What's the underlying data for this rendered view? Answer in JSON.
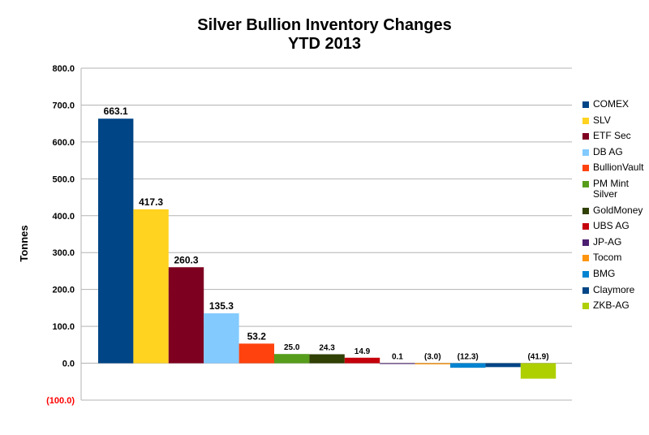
{
  "chart_data": {
    "type": "bar",
    "title": "Silver Bullion Inventory Changes",
    "subtitle": "YTD 2013",
    "xlabel": "",
    "ylabel": "Tonnes",
    "ylim": [
      -100,
      800
    ],
    "yticks": [
      800,
      700,
      600,
      500,
      400,
      300,
      200,
      100,
      0,
      -100
    ],
    "ytick_labels": [
      "800.0",
      "700.0",
      "600.0",
      "500.0",
      "400.0",
      "300.0",
      "200.0",
      "100.0",
      "0.0",
      "(100.0)"
    ],
    "negative_tick_color": "#ff0000",
    "grid": true,
    "legend_position": "right",
    "series": [
      {
        "name": "COMEX",
        "value": 663.1,
        "label": "663.1",
        "color": "#004586"
      },
      {
        "name": "SLV",
        "value": 417.3,
        "label": "417.3",
        "color": "#ffd320"
      },
      {
        "name": "ETF Sec",
        "value": 260.3,
        "label": "260.3",
        "color": "#7e0021"
      },
      {
        "name": "DB AG",
        "value": 135.3,
        "label": "135.3",
        "color": "#83caff"
      },
      {
        "name": "BullionVault",
        "value": 53.2,
        "label": "53.2",
        "color": "#ff420e"
      },
      {
        "name": "PM Mint\nSilver",
        "value": 25.0,
        "label": "25.0",
        "color": "#579d1c"
      },
      {
        "name": "GoldMoney",
        "value": 24.3,
        "label": "24.3",
        "color": "#314004"
      },
      {
        "name": "UBS AG",
        "value": 14.9,
        "label": "14.9",
        "color": "#c5000b"
      },
      {
        "name": "JP-AG",
        "value": 0.1,
        "label": "0.1",
        "color": "#4b1f6f"
      },
      {
        "name": "Tocom",
        "value": -3.0,
        "label": "(3.0)",
        "color": "#ff950e"
      },
      {
        "name": "BMG",
        "value": -12.3,
        "label": "(12.3)",
        "color": "#0084d1"
      },
      {
        "name": "Claymore",
        "value": -10.5,
        "label": "",
        "color": "#004586"
      },
      {
        "name": "ZKB-AG",
        "value": -41.9,
        "label": "(41.9)",
        "color": "#aecf00"
      }
    ]
  }
}
